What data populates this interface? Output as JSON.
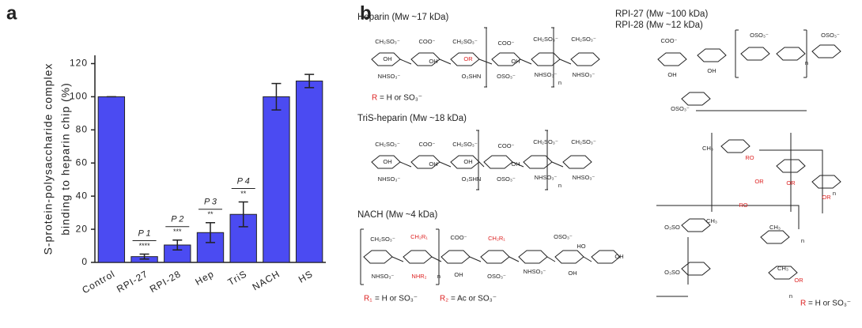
{
  "chart_data": {
    "type": "bar",
    "panel_label": "a",
    "ylabel": [
      "S-protein-polysaccharide complex",
      "binding to heparin chip (%)"
    ],
    "categories": [
      "Control",
      "RPI-27",
      "RPI-28",
      "Hep",
      "TriS",
      "NACH",
      "HS"
    ],
    "values": [
      100,
      3.5,
      10.5,
      18,
      29,
      100,
      109.5
    ],
    "errors": [
      0,
      1.5,
      3,
      6,
      7.5,
      8,
      4
    ],
    "pairs": [
      null,
      "P 1",
      "P 2",
      "P 3",
      "P 4",
      null,
      null
    ],
    "significance": [
      null,
      "****",
      "***",
      "**",
      "**",
      null,
      null
    ],
    "color": "#4b4bf2",
    "ylim": [
      0,
      125
    ],
    "yticks": [
      0,
      20,
      40,
      60,
      80,
      100,
      120
    ]
  },
  "panel_b": {
    "panel_label": "b",
    "heparin": {
      "title": "Heparin (Mw ~17 kDa)",
      "groups": [
        "CH₂SO₃⁻",
        "COO⁻",
        "CH₂SO₃⁻",
        "COO⁻",
        "CH₂SO₃⁻",
        "CH₂SO₃⁻",
        "OH",
        "OH",
        "OR",
        "OH",
        "NHSO₃⁻",
        "O₃SHN",
        "OSO₃⁻",
        "NHSO₃⁻",
        "NHSO₃⁻",
        "n"
      ],
      "r_symbol": "R",
      "r_definition": "= H or SO₃⁻"
    },
    "tris": {
      "title": "TriS-heparin (Mw ~18 kDa)",
      "groups": [
        "CH₂SO₃⁻",
        "COO⁻",
        "CH₂SO₃⁻",
        "COO⁻",
        "CH₂SO₃⁻",
        "CH₂SO₃⁻",
        "OH",
        "OH",
        "OH",
        "OH",
        "NHSO₃⁻",
        "O₃SHN",
        "OSO₃⁻",
        "NHSO₃⁻",
        "NHSO₃⁻",
        "n"
      ]
    },
    "nach": {
      "title": "NACH (Mw ~4 kDa)",
      "groups": [
        "CH₂SO₃⁻",
        "CH₂R₁",
        "COO⁻",
        "CH₂R₁",
        "OSO₃⁻",
        "HO",
        "OH",
        "NHSO₃⁻",
        "NHR₂",
        "OH",
        "OSO₃⁻",
        "NHSO₃⁻",
        "OH",
        "n"
      ],
      "r1_symbol": "R₁",
      "r1_definition": "= H or SO₃⁻",
      "r2_symbol": "R₂",
      "r2_definition": "= Ac or SO₃⁻"
    },
    "rpi": {
      "title_1": "RPI-27 (Mw ~100 kDa)",
      "title_2": "RPI-28 (Mw ~12 kDa)",
      "groups": [
        "COO⁻",
        "OSO₃⁻",
        "OSO₃⁻",
        "OH",
        "OH",
        "OSO₃⁻",
        "CH₃",
        "CH₃",
        "RO",
        "OR",
        "OR",
        "OR",
        "RO",
        "CH₃",
        "CH₃",
        "O₃SO",
        "O₃SO",
        "OR",
        "n",
        "n",
        "n",
        "n"
      ],
      "r_symbol": "R",
      "r_definition": "= H or SO₃⁻"
    }
  }
}
